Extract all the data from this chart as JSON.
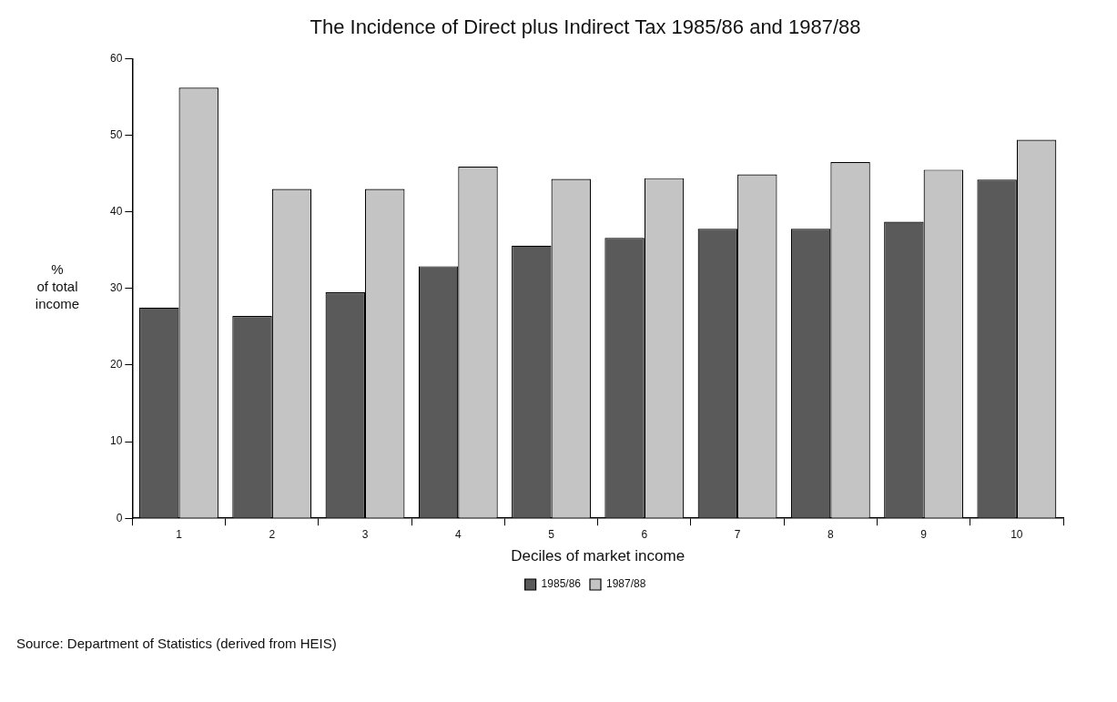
{
  "chart_data": {
    "type": "bar",
    "title": "The Incidence of Direct plus Indirect Tax 1985/86 and 1987/88",
    "xlabel": "Deciles of market income",
    "ylabel": "% of total income",
    "categories": [
      "1",
      "2",
      "3",
      "4",
      "5",
      "6",
      "7",
      "8",
      "9",
      "10"
    ],
    "series": [
      {
        "name": "1985/86",
        "color": "#5a5a5a",
        "values": [
          27.5,
          26.4,
          29.5,
          32.9,
          35.6,
          36.6,
          37.8,
          37.8,
          38.7,
          44.2
        ]
      },
      {
        "name": "1987/88",
        "color": "#c4c4c4",
        "values": [
          56.2,
          43,
          43,
          45.9,
          44.3,
          44.4,
          44.9,
          46.5,
          45.5,
          49.4
        ]
      }
    ],
    "ylim": [
      0,
      60
    ],
    "yticks": [
      0,
      10,
      20,
      30,
      40,
      50,
      60
    ],
    "grid": false,
    "legend": "bottom",
    "annotations": [
      "Source: Department of Statistics (derived from HEIS)"
    ]
  }
}
